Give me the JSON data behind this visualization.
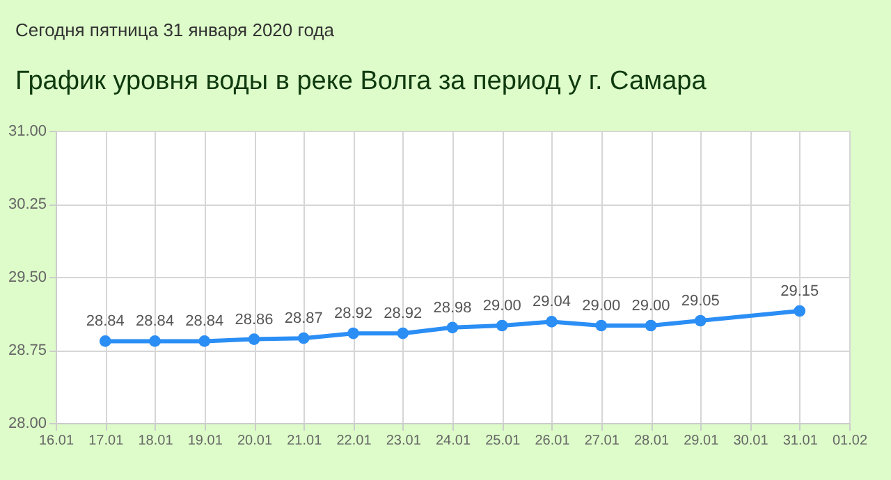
{
  "chart_data": {
    "type": "line",
    "title": "График уровня воды в реке Волга за период у г. Самара",
    "annotations": [
      "Сегодня пятница 31 января 2020 года"
    ],
    "x": [
      "2020-01-17",
      "2020-01-18",
      "2020-01-19",
      "2020-01-20",
      "2020-01-21",
      "2020-01-22",
      "2020-01-23",
      "2020-01-24",
      "2020-01-25",
      "2020-01-26",
      "2020-01-27",
      "2020-01-28",
      "2020-01-29",
      "2020-01-31"
    ],
    "series": [
      {
        "color": "#2b8ef5",
        "values": [
          28.84,
          28.84,
          28.84,
          28.86,
          28.87,
          28.92,
          28.92,
          28.98,
          29.0,
          29.04,
          29.0,
          29.0,
          29.05,
          29.15
        ],
        "value_labels": [
          "28.84",
          "28.84",
          "28.84",
          "28.86",
          "28.87",
          "28.92",
          "28.92",
          "28.98",
          "29.00",
          "29.04",
          "29.00",
          "29.00",
          "29.05",
          "29.15"
        ]
      }
    ],
    "xlim": [
      "2020-01-16",
      "2020-02-01"
    ],
    "xticks": [
      {
        "value": "2020-01-16",
        "label": "16.01"
      },
      {
        "value": "2020-01-17",
        "label": "17.01"
      },
      {
        "value": "2020-01-18",
        "label": "18.01"
      },
      {
        "value": "2020-01-19",
        "label": "19.01"
      },
      {
        "value": "2020-01-20",
        "label": "20.01"
      },
      {
        "value": "2020-01-21",
        "label": "21.01"
      },
      {
        "value": "2020-01-22",
        "label": "22.01"
      },
      {
        "value": "2020-01-23",
        "label": "23.01"
      },
      {
        "value": "2020-01-24",
        "label": "24.01"
      },
      {
        "value": "2020-01-25",
        "label": "25.01"
      },
      {
        "value": "2020-01-26",
        "label": "26.01"
      },
      {
        "value": "2020-01-27",
        "label": "27.01"
      },
      {
        "value": "2020-01-28",
        "label": "28.01"
      },
      {
        "value": "2020-01-29",
        "label": "29.01"
      },
      {
        "value": "2020-01-30",
        "label": "30.01"
      },
      {
        "value": "2020-01-31",
        "label": "31.01"
      },
      {
        "value": "2020-02-01",
        "label": "01.02"
      }
    ],
    "ylim": [
      28.0,
      31.0
    ],
    "yticks": [
      {
        "value": 28,
        "label": "28.00"
      },
      {
        "value": 28.75,
        "label": "28.75"
      },
      {
        "value": 29.5,
        "label": "29.50"
      },
      {
        "value": 30.25,
        "label": "30.25"
      },
      {
        "value": 31,
        "label": "31.00"
      }
    ],
    "grid": true,
    "marker": "circle",
    "line_style": "solid"
  }
}
